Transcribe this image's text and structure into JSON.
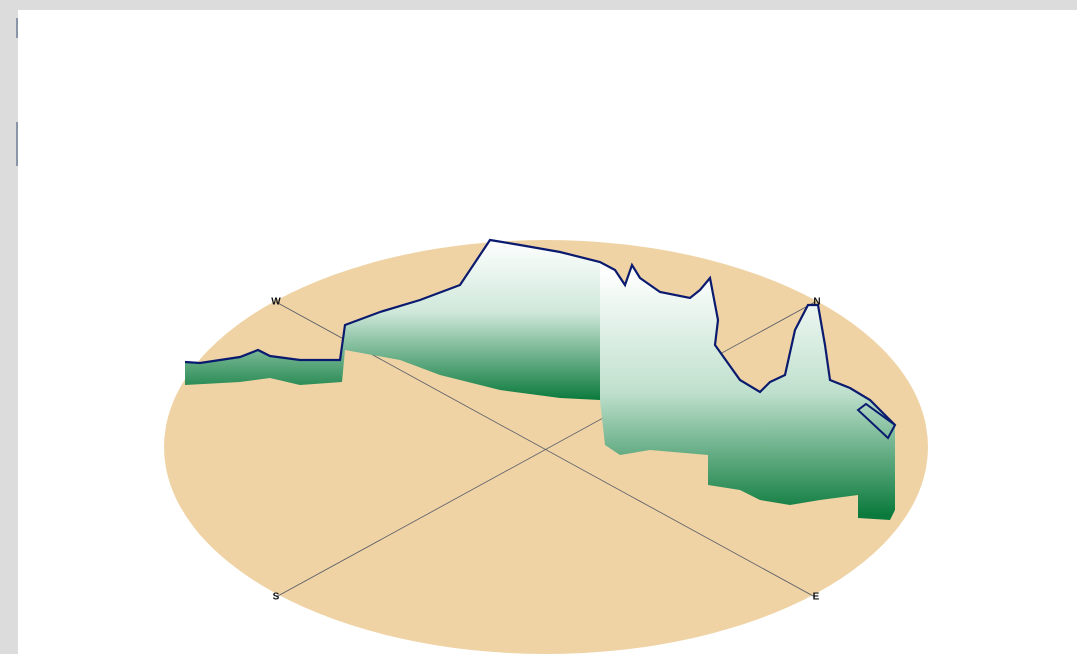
{
  "compass": {
    "west": "W",
    "north": "N",
    "south": "S",
    "east": "E"
  }
}
